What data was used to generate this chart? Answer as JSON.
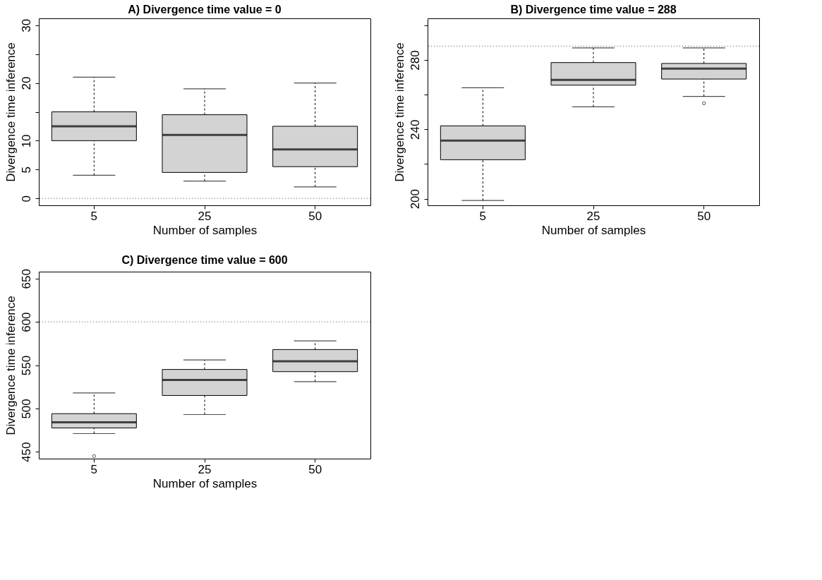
{
  "chart_data": [
    {
      "type": "box",
      "title": "A) Divergence time value = 0",
      "xlabel": "Number of samples",
      "ylabel": "Divergence time inference",
      "categories": [
        "5",
        "25",
        "50"
      ],
      "series": [
        {
          "color": "#d3d3d3",
          "boxes": [
            {
              "low": 4.0,
              "q1": 10.0,
              "median": 12.5,
              "q3": 15.0,
              "high": 21.0
            },
            {
              "low": 3.0,
              "q1": 4.5,
              "median": 11.0,
              "q3": 14.5,
              "high": 19.0
            },
            {
              "low": 2.0,
              "q1": 5.5,
              "median": 8.5,
              "q3": 12.5,
              "high": 20.0
            }
          ]
        }
      ],
      "ylim": [
        -1.2,
        31.2
      ],
      "yticks": [
        0,
        5,
        10,
        {
          "value": 15,
          "label": null
        },
        20,
        {
          "value": 25,
          "label": null
        },
        30
      ],
      "ref_lines": [
        {
          "axis": "y",
          "value": 0,
          "color": "#555555",
          "line_style": "dotted"
        }
      ]
    },
    {
      "type": "box",
      "title": "B) Divergence time value = 288",
      "xlabel": "Number of samples",
      "ylabel": "Divergence time inference",
      "categories": [
        "5",
        "25",
        "50"
      ],
      "series": [
        {
          "color": "#d3d3d3",
          "boxes": [
            {
              "low": 199,
              "q1": 222.5,
              "median": 233.5,
              "q3": 242,
              "high": 264
            },
            {
              "low": 253,
              "q1": 265.5,
              "median": 268.5,
              "q3": 278.5,
              "high": 287
            },
            {
              "low": 259,
              "q1": 269,
              "median": 275,
              "q3": 278,
              "high": 287,
              "outliers": [
                255
              ]
            }
          ]
        }
      ],
      "ylim": [
        196.2,
        304
      ],
      "yticks": [
        200,
        {
          "value": 220,
          "label": null
        },
        240,
        {
          "value": 260,
          "label": null
        },
        280,
        {
          "value": 300,
          "label": null
        }
      ],
      "ref_lines": [
        {
          "axis": "y",
          "value": 288,
          "color": "#555555",
          "line_style": "dotted"
        }
      ]
    },
    {
      "type": "box",
      "title": "C) Divergence time value = 600",
      "xlabel": "Number of samples",
      "ylabel": "Divergence time inference",
      "categories": [
        "5",
        "25",
        "50"
      ],
      "series": [
        {
          "color": "#d3d3d3",
          "boxes": [
            {
              "low": 471,
              "q1": 477.5,
              "median": 484,
              "q3": 494,
              "high": 518,
              "outliers": [
                445
              ]
            },
            {
              "low": 493,
              "q1": 515,
              "median": 533,
              "q3": 545,
              "high": 556
            },
            {
              "low": 531,
              "q1": 542.5,
              "median": 554.5,
              "q3": 568,
              "high": 578
            }
          ]
        }
      ],
      "ylim": [
        442.1,
        657.9
      ],
      "yticks": [
        450,
        500,
        550,
        600,
        650
      ],
      "ref_lines": [
        {
          "axis": "y",
          "value": 600,
          "color": "#555555",
          "line_style": "dotted"
        }
      ]
    }
  ]
}
